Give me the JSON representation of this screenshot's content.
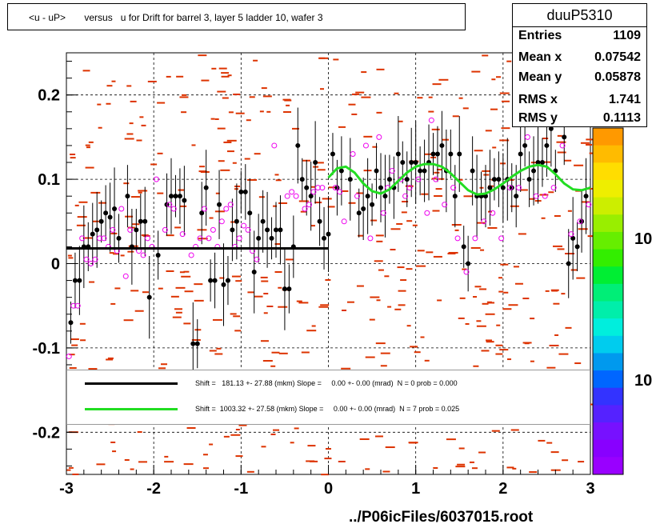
{
  "title": "<u - uP>       versus   u for Drift for barrel 3, layer 5 ladder 10, wafer 3",
  "stats": {
    "name": "duuP5310",
    "rows": [
      {
        "label": "Entries",
        "value": "1109"
      },
      {
        "label": "Mean x",
        "value": "0.07542"
      },
      {
        "label": "Mean y",
        "value": "0.05878"
      },
      {
        "label": "RMS x",
        "value": "1.741"
      },
      {
        "label": "RMS y",
        "value": "0.1113"
      }
    ]
  },
  "legend": {
    "line1": "Shift =   181.13 +- 27.88 (mkm) Slope =     0.00 +- 0.00 (mrad)  N = 0 prob = 0.000",
    "line2": "Shift =  1003.32 +- 27.58 (mkm) Slope =     0.00 +- 0.00 (mrad)  N = 7 prob = 0.025"
  },
  "colors": {
    "fit_black": "#000000",
    "fit_green": "#22dd22",
    "hist": "#dd3300",
    "markers": "#ee00ee"
  },
  "palette_labels": [
    "10",
    "10"
  ],
  "footer": "../P06icFiles/6037015.root",
  "chart_data": {
    "type": "scatter",
    "xlim": [
      -3,
      3
    ],
    "ylim": [
      -0.25,
      0.25
    ],
    "x_ticks": [
      -3,
      -2,
      -1,
      0,
      1,
      2,
      3
    ],
    "x_tick_labels": [
      "-3",
      "-2",
      "-1",
      "0",
      "1",
      "2",
      "3"
    ],
    "y_ticks": [
      -0.2,
      -0.1,
      0,
      0.1,
      0.2
    ],
    "y_tick_labels": [
      "-0.2",
      "-0.1",
      "0",
      "0.1",
      "0.2"
    ],
    "grid": true,
    "profile_black": [
      {
        "x": -2.95,
        "y": -0.07
      },
      {
        "x": -2.9,
        "y": -0.02
      },
      {
        "x": -2.85,
        "y": -0.02
      },
      {
        "x": -2.8,
        "y": 0.02
      },
      {
        "x": -2.75,
        "y": 0.02
      },
      {
        "x": -2.7,
        "y": 0.035
      },
      {
        "x": -2.65,
        "y": 0.04
      },
      {
        "x": -2.6,
        "y": 0.05
      },
      {
        "x": -2.55,
        "y": 0.06
      },
      {
        "x": -2.5,
        "y": 0.055
      },
      {
        "x": -2.45,
        "y": 0.065
      },
      {
        "x": -2.4,
        "y": 0.03
      },
      {
        "x": -2.3,
        "y": 0.08
      },
      {
        "x": -2.25,
        "y": 0.02
      },
      {
        "x": -2.2,
        "y": 0.04
      },
      {
        "x": -2.15,
        "y": 0.05
      },
      {
        "x": -2.1,
        "y": 0.05
      },
      {
        "x": -2.05,
        "y": -0.04
      },
      {
        "x": -1.95,
        "y": 0.01
      },
      {
        "x": -1.85,
        "y": 0.07
      },
      {
        "x": -1.8,
        "y": 0.08
      },
      {
        "x": -1.75,
        "y": 0.08
      },
      {
        "x": -1.7,
        "y": 0.08
      },
      {
        "x": -1.65,
        "y": 0.075
      },
      {
        "x": -1.55,
        "y": -0.095
      },
      {
        "x": -1.5,
        "y": -0.095
      },
      {
        "x": -1.45,
        "y": 0.06
      },
      {
        "x": -1.4,
        "y": 0.09
      },
      {
        "x": -1.35,
        "y": -0.02
      },
      {
        "x": -1.3,
        "y": -0.02
      },
      {
        "x": -1.25,
        "y": 0.07
      },
      {
        "x": -1.2,
        "y": -0.025
      },
      {
        "x": -1.15,
        "y": -0.02
      },
      {
        "x": -1.1,
        "y": 0.04
      },
      {
        "x": -1.05,
        "y": 0.05
      },
      {
        "x": -1.0,
        "y": 0.085
      },
      {
        "x": -0.95,
        "y": 0.085
      },
      {
        "x": -0.9,
        "y": 0.06
      },
      {
        "x": -0.85,
        "y": -0.01
      },
      {
        "x": -0.8,
        "y": 0.03
      },
      {
        "x": -0.75,
        "y": 0.05
      },
      {
        "x": -0.7,
        "y": 0.04
      },
      {
        "x": -0.65,
        "y": 0.03
      },
      {
        "x": -0.6,
        "y": 0.04
      },
      {
        "x": -0.55,
        "y": 0.04
      },
      {
        "x": -0.5,
        "y": -0.03
      },
      {
        "x": -0.45,
        "y": -0.03
      },
      {
        "x": -0.4,
        "y": 0.02
      },
      {
        "x": -0.35,
        "y": 0.14
      },
      {
        "x": -0.3,
        "y": 0.1
      },
      {
        "x": -0.25,
        "y": 0.09
      },
      {
        "x": -0.2,
        "y": 0.08
      },
      {
        "x": -0.15,
        "y": 0.12
      },
      {
        "x": -0.1,
        "y": 0.05
      },
      {
        "x": -0.05,
        "y": 0.03
      },
      {
        "x": 0.0,
        "y": 0.035
      },
      {
        "x": 0.05,
        "y": 0.13
      },
      {
        "x": 0.1,
        "y": 0.09
      },
      {
        "x": 0.15,
        "y": 0.11
      },
      {
        "x": 0.25,
        "y": 0.1
      },
      {
        "x": 0.35,
        "y": 0.06
      },
      {
        "x": 0.4,
        "y": 0.065
      },
      {
        "x": 0.45,
        "y": 0.08
      },
      {
        "x": 0.5,
        "y": 0.07
      },
      {
        "x": 0.55,
        "y": 0.11
      },
      {
        "x": 0.6,
        "y": 0.09
      },
      {
        "x": 0.65,
        "y": 0.08
      },
      {
        "x": 0.7,
        "y": 0.1
      },
      {
        "x": 0.75,
        "y": 0.09
      },
      {
        "x": 0.8,
        "y": 0.13
      },
      {
        "x": 0.85,
        "y": 0.12
      },
      {
        "x": 0.9,
        "y": 0.1
      },
      {
        "x": 0.95,
        "y": 0.12
      },
      {
        "x": 1.0,
        "y": 0.12
      },
      {
        "x": 1.05,
        "y": 0.11
      },
      {
        "x": 1.1,
        "y": 0.11
      },
      {
        "x": 1.15,
        "y": 0.12
      },
      {
        "x": 1.2,
        "y": 0.13
      },
      {
        "x": 1.25,
        "y": 0.13
      },
      {
        "x": 1.3,
        "y": 0.14
      },
      {
        "x": 1.35,
        "y": 0.11
      },
      {
        "x": 1.4,
        "y": 0.13
      },
      {
        "x": 1.45,
        "y": 0.08
      },
      {
        "x": 1.5,
        "y": 0.13
      },
      {
        "x": 1.55,
        "y": 0.02
      },
      {
        "x": 1.6,
        "y": 0.0
      },
      {
        "x": 1.65,
        "y": 0.11
      },
      {
        "x": 1.7,
        "y": 0.08
      },
      {
        "x": 1.75,
        "y": 0.08
      },
      {
        "x": 1.8,
        "y": 0.08
      },
      {
        "x": 1.85,
        "y": 0.09
      },
      {
        "x": 1.9,
        "y": 0.1
      },
      {
        "x": 1.95,
        "y": 0.1
      },
      {
        "x": 2.0,
        "y": 0.09
      },
      {
        "x": 2.05,
        "y": 0.1
      },
      {
        "x": 2.1,
        "y": 0.09
      },
      {
        "x": 2.15,
        "y": 0.08
      },
      {
        "x": 2.2,
        "y": 0.13
      },
      {
        "x": 2.25,
        "y": 0.14
      },
      {
        "x": 2.3,
        "y": 0.1
      },
      {
        "x": 2.35,
        "y": 0.11
      },
      {
        "x": 2.4,
        "y": 0.12
      },
      {
        "x": 2.45,
        "y": 0.12
      },
      {
        "x": 2.5,
        "y": 0.14
      },
      {
        "x": 2.55,
        "y": 0.16
      },
      {
        "x": 2.6,
        "y": 0.11
      },
      {
        "x": 2.7,
        "y": 0.15
      },
      {
        "x": 2.75,
        "y": 0.0
      },
      {
        "x": 2.8,
        "y": 0.03
      },
      {
        "x": 2.85,
        "y": 0.02
      },
      {
        "x": 2.9,
        "y": 0.05
      },
      {
        "x": 2.95,
        "y": 0.08
      }
    ],
    "profile_magenta": [
      {
        "x": -2.97,
        "y": -0.11
      },
      {
        "x": -2.92,
        "y": -0.05
      },
      {
        "x": -2.87,
        "y": -0.05
      },
      {
        "x": -2.82,
        "y": 0.03
      },
      {
        "x": -2.77,
        "y": 0.005
      },
      {
        "x": -2.72,
        "y": 0.0
      },
      {
        "x": -2.67,
        "y": 0.005
      },
      {
        "x": -2.62,
        "y": 0.03
      },
      {
        "x": -2.57,
        "y": 0.03
      },
      {
        "x": -2.52,
        "y": 0.02
      },
      {
        "x": -2.47,
        "y": 0.04
      },
      {
        "x": -2.42,
        "y": 0.015
      },
      {
        "x": -2.37,
        "y": 0.065
      },
      {
        "x": -2.32,
        "y": -0.015
      },
      {
        "x": -2.27,
        "y": 0.04
      },
      {
        "x": -2.17,
        "y": 0.015
      },
      {
        "x": -2.12,
        "y": 0.01
      },
      {
        "x": -2.07,
        "y": 0.03
      },
      {
        "x": -2.02,
        "y": 0.02
      },
      {
        "x": -1.97,
        "y": 0.1
      },
      {
        "x": -1.87,
        "y": 0.04
      },
      {
        "x": -1.82,
        "y": 0.07
      },
      {
        "x": -1.77,
        "y": 0.065
      },
      {
        "x": -1.67,
        "y": 0.035
      },
      {
        "x": -1.57,
        "y": 0.01
      },
      {
        "x": -1.52,
        "y": 0.02
      },
      {
        "x": -1.47,
        "y": 0.03
      },
      {
        "x": -1.42,
        "y": 0.065
      },
      {
        "x": -1.37,
        "y": 0.03
      },
      {
        "x": -1.32,
        "y": 0.04
      },
      {
        "x": -1.27,
        "y": 0.02
      },
      {
        "x": -1.22,
        "y": 0.05
      },
      {
        "x": -1.17,
        "y": 0.065
      },
      {
        "x": -1.12,
        "y": 0.07
      },
      {
        "x": -1.07,
        "y": 0.02
      },
      {
        "x": -1.02,
        "y": 0.03
      },
      {
        "x": -0.97,
        "y": 0.045
      },
      {
        "x": -0.92,
        "y": 0.04
      },
      {
        "x": -0.87,
        "y": 0.015
      },
      {
        "x": -0.82,
        "y": 0.005
      },
      {
        "x": -0.62,
        "y": 0.14
      },
      {
        "x": -0.47,
        "y": 0.08
      },
      {
        "x": -0.42,
        "y": 0.085
      },
      {
        "x": -0.37,
        "y": 0.08
      },
      {
        "x": -0.27,
        "y": 0.065
      },
      {
        "x": -0.22,
        "y": 0.07
      },
      {
        "x": -0.17,
        "y": 0.085
      },
      {
        "x": -0.12,
        "y": 0.09
      },
      {
        "x": -0.07,
        "y": 0.09
      },
      {
        "x": 0.08,
        "y": 0.09
      },
      {
        "x": 0.13,
        "y": 0.085
      },
      {
        "x": 0.18,
        "y": 0.05
      },
      {
        "x": 0.28,
        "y": 0.13
      },
      {
        "x": 0.33,
        "y": 0.08
      },
      {
        "x": 0.43,
        "y": 0.14
      },
      {
        "x": 0.48,
        "y": 0.03
      },
      {
        "x": 0.58,
        "y": 0.15
      },
      {
        "x": 0.63,
        "y": 0.06
      },
      {
        "x": 0.68,
        "y": 0.09
      },
      {
        "x": 0.73,
        "y": 0.11
      },
      {
        "x": 0.83,
        "y": 0.1
      },
      {
        "x": 0.88,
        "y": 0.08
      },
      {
        "x": 0.93,
        "y": 0.09
      },
      {
        "x": 1.03,
        "y": 0.1
      },
      {
        "x": 1.13,
        "y": 0.06
      },
      {
        "x": 1.18,
        "y": 0.17
      },
      {
        "x": 1.23,
        "y": 0.1
      },
      {
        "x": 1.33,
        "y": 0.07
      },
      {
        "x": 1.43,
        "y": 0.09
      },
      {
        "x": 1.48,
        "y": 0.03
      },
      {
        "x": 1.58,
        "y": -0.01
      },
      {
        "x": 1.68,
        "y": 0.03
      },
      {
        "x": 1.78,
        "y": 0.05
      },
      {
        "x": 1.88,
        "y": 0.06
      },
      {
        "x": 1.98,
        "y": 0.03
      },
      {
        "x": 2.08,
        "y": 0.09
      },
      {
        "x": 2.18,
        "y": 0.09
      },
      {
        "x": 2.28,
        "y": 0.15
      },
      {
        "x": 2.38,
        "y": 0.08
      },
      {
        "x": 2.48,
        "y": 0.08
      },
      {
        "x": 2.58,
        "y": 0.09
      },
      {
        "x": 2.68,
        "y": 0.14
      },
      {
        "x": 2.78,
        "y": 0.035
      },
      {
        "x": 2.88,
        "y": 0.05
      },
      {
        "x": 2.98,
        "y": 0.07
      }
    ],
    "fit_black": {
      "x_range": [
        -3,
        0
      ],
      "y": 0.018
    },
    "fit_green_samples": {
      "x": [
        0.0,
        0.1,
        0.2,
        0.3,
        0.4,
        0.5,
        0.6,
        0.7,
        0.8,
        0.9,
        1.0,
        1.1,
        1.2,
        1.3,
        1.4,
        1.5,
        1.6,
        1.7,
        1.8,
        1.9,
        2.0,
        2.1,
        2.2,
        2.3,
        2.4,
        2.5,
        2.6,
        2.7,
        2.8,
        2.9,
        3.0
      ],
      "y": [
        0.102,
        0.113,
        0.115,
        0.108,
        0.095,
        0.086,
        0.083,
        0.088,
        0.098,
        0.108,
        0.115,
        0.118,
        0.118,
        0.115,
        0.107,
        0.097,
        0.087,
        0.082,
        0.083,
        0.088,
        0.095,
        0.103,
        0.11,
        0.115,
        0.117,
        0.115,
        0.106,
        0.095,
        0.088,
        0.087,
        0.09
      ]
    }
  }
}
